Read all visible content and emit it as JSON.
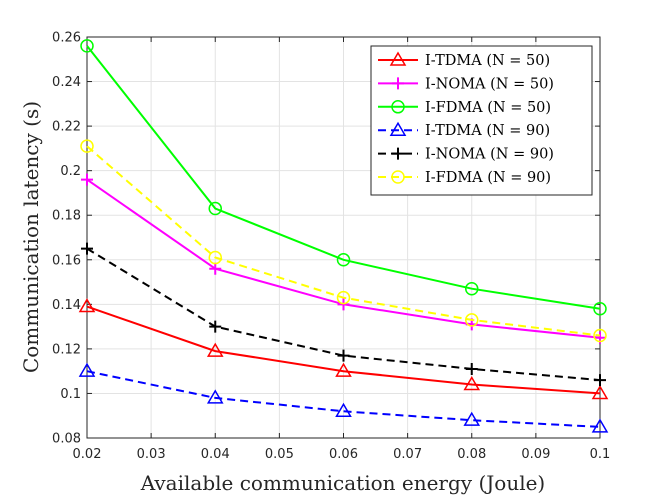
{
  "chart_data": {
    "type": "line",
    "title": "",
    "xlabel": "Available communication energy (Joule)",
    "ylabel": "Communication latency (s)",
    "xlim": [
      0.02,
      0.1
    ],
    "ylim": [
      0.08,
      0.26
    ],
    "xticks": [
      "0.02",
      "0.03",
      "0.04",
      "0.05",
      "0.06",
      "0.07",
      "0.08",
      "0.09",
      "0.1"
    ],
    "yticks": [
      "0.08",
      "0.1",
      "0.12",
      "0.14",
      "0.16",
      "0.18",
      "0.2",
      "0.22",
      "0.24",
      "0.26"
    ],
    "grid": true,
    "legend_position": "top-right",
    "x": [
      0.02,
      0.04,
      0.06,
      0.08,
      0.1
    ],
    "series": [
      {
        "name": "I-TDMA (N = 50)",
        "color": "#ff0000",
        "dash": "solid",
        "marker": "triangle",
        "values": [
          0.139,
          0.119,
          0.11,
          0.104,
          0.1
        ]
      },
      {
        "name": "I-NOMA (N = 50)",
        "color": "#ff00ff",
        "dash": "solid",
        "marker": "plus",
        "values": [
          0.196,
          0.156,
          0.14,
          0.131,
          0.125
        ]
      },
      {
        "name": "I-FDMA (N = 50)",
        "color": "#00ff00",
        "dash": "solid",
        "marker": "circle",
        "values": [
          0.256,
          0.183,
          0.16,
          0.147,
          0.138
        ]
      },
      {
        "name": "I-TDMA (N = 90)",
        "color": "#0000ff",
        "dash": "dashed",
        "marker": "triangle",
        "values": [
          0.11,
          0.098,
          0.092,
          0.088,
          0.085
        ]
      },
      {
        "name": "I-NOMA (N = 90)",
        "color": "#000000",
        "dash": "dashed",
        "marker": "plus",
        "values": [
          0.165,
          0.13,
          0.117,
          0.111,
          0.106
        ]
      },
      {
        "name": "I-FDMA (N = 90)",
        "color": "#ffff00",
        "dash": "dashed",
        "marker": "circle",
        "values": [
          0.211,
          0.161,
          0.143,
          0.133,
          0.126
        ]
      }
    ]
  }
}
